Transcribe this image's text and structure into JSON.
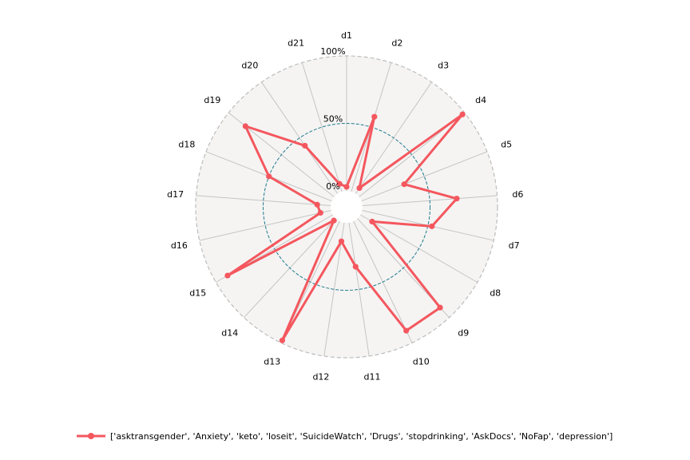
{
  "chart_data": {
    "type": "radar",
    "categories": [
      "d1",
      "d2",
      "d3",
      "d4",
      "d5",
      "d6",
      "d7",
      "d8",
      "d9",
      "d10",
      "d11",
      "d12",
      "d13",
      "d14",
      "d15",
      "d16",
      "d17",
      "d18",
      "d19",
      "d20",
      "d21"
    ],
    "series": [
      {
        "name": "['asktransgender', 'Anxiety', 'keto', 'loseit', 'SuicideWatch', 'Drugs', 'stopdrinking', 'AskDocs', 'NoFap', 'depression']",
        "values": [
          0.03,
          0.58,
          0.05,
          0.98,
          0.34,
          0.7,
          0.53,
          0.1,
          0.9,
          0.9,
          0.33,
          0.14,
          0.98,
          0.02,
          0.9,
          0.08,
          0.1,
          0.5,
          0.84,
          0.43,
          0.06
        ]
      }
    ],
    "rlim": [
      0,
      1
    ],
    "rticks": [
      "0%",
      "50%",
      "100%"
    ],
    "colors": {
      "series": "#f4575e",
      "grid": "#c4c4c4",
      "mid_circle": "#1f7a8c",
      "face": "#f5f4f3"
    }
  }
}
